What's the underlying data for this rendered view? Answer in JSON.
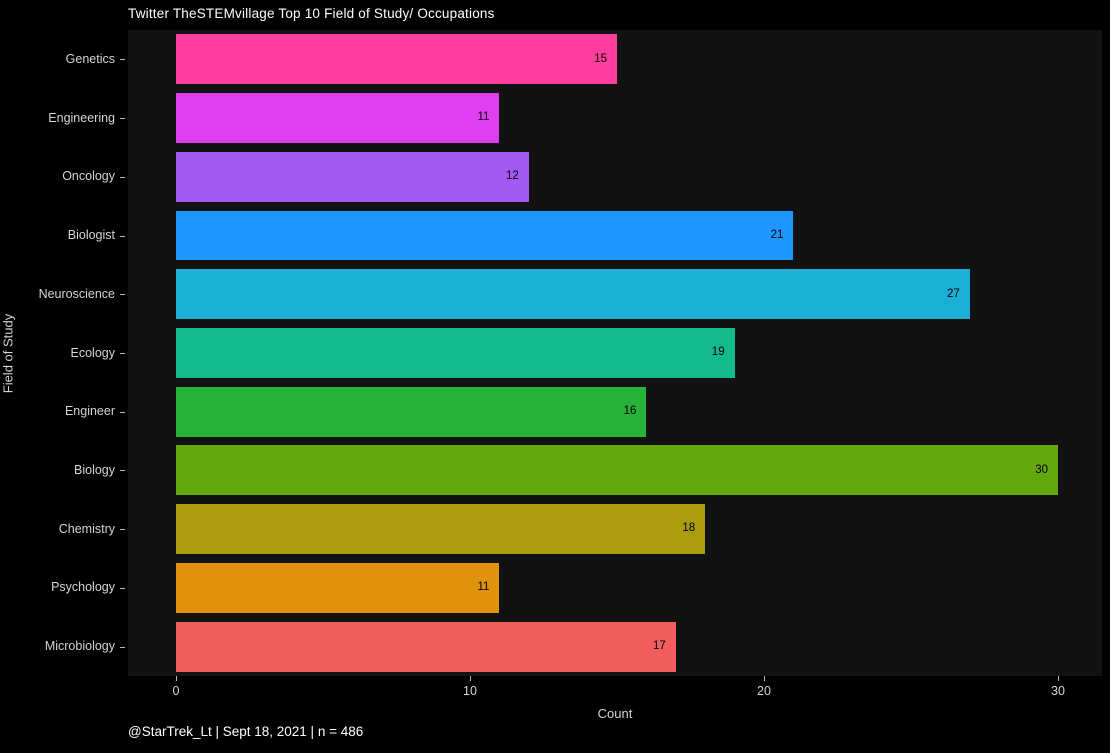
{
  "page": {
    "background": "#000000",
    "panel_background": "#121212",
    "text_color": "#d4d4d4",
    "title_color": "#ffffff",
    "value_label_color": "#000000"
  },
  "chart_data": {
    "type": "bar",
    "orientation": "horizontal",
    "title": "Twitter TheSTEMvillage Top 10 Field of Study/ Occupations",
    "xlabel": "Count",
    "ylabel": "Field of Study",
    "caption": "@StarTrek_Lt | Sept 18, 2021 | n = 486",
    "categories": [
      "Genetics",
      "Engineering",
      "Oncology",
      "Biologist",
      "Neuroscience",
      "Ecology",
      "Engineer",
      "Biology",
      "Chemistry",
      "Psychology",
      "Microbiology"
    ],
    "values": [
      15,
      11,
      12,
      21,
      27,
      19,
      16,
      30,
      18,
      11,
      17
    ],
    "bar_colors": [
      "#FF3D9C",
      "#DE40F0",
      "#A159F2",
      "#1E96FF",
      "#1BAFD6",
      "#12BA8C",
      "#27B337",
      "#62A80D",
      "#AB9C0E",
      "#E0920D",
      "#F25E5E"
    ],
    "x_ticks": [
      0,
      10,
      20,
      30
    ],
    "xlim": [
      0,
      30
    ],
    "grid": false,
    "legend": "none",
    "value_labels_inside_bar": true
  }
}
